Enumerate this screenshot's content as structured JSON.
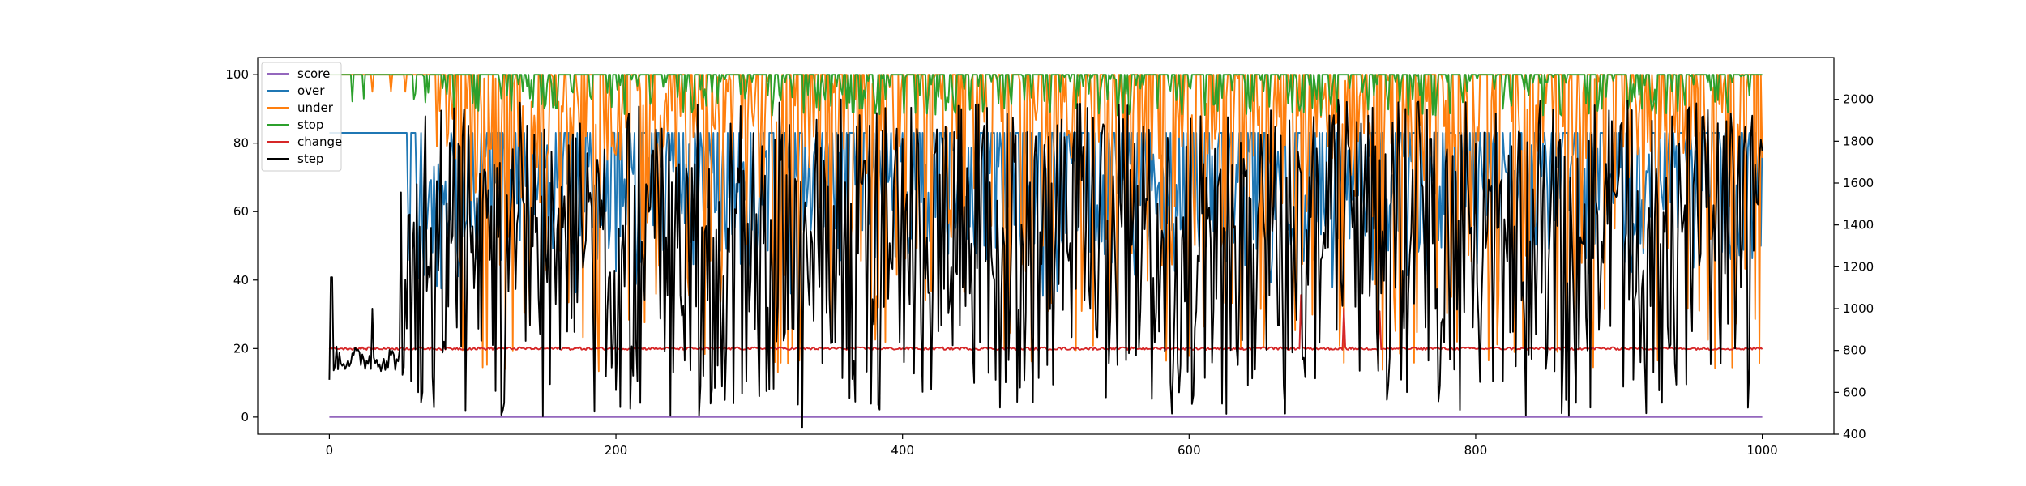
{
  "chart_data": {
    "type": "line",
    "title": "",
    "xlabel": "",
    "ylabel": "",
    "y2label": "",
    "xlim": [
      -50,
      1050
    ],
    "ylim": [
      -5,
      105
    ],
    "y2lim": [
      400,
      2200
    ],
    "xticks": [
      0,
      200,
      400,
      600,
      800,
      1000
    ],
    "yticks": [
      0,
      20,
      40,
      60,
      80,
      100
    ],
    "y2ticks": [
      400,
      600,
      800,
      1000,
      1200,
      1400,
      1600,
      1800,
      2000
    ],
    "grid": false,
    "legend": {
      "position": "top-left",
      "entries": [
        "score",
        "over",
        "under",
        "stop",
        "change",
        "step"
      ]
    },
    "series": [
      {
        "name": "score",
        "axis": "left",
        "color": "#9467bd",
        "pattern": "constant",
        "value": 0
      },
      {
        "name": "over",
        "axis": "left",
        "color": "#1f77b4",
        "pattern": "noisy",
        "base": 83,
        "min": 35,
        "max": 83,
        "approx_mean": 62
      },
      {
        "name": "under",
        "axis": "left",
        "color": "#ff7f0e",
        "pattern": "noisy",
        "base": 100,
        "min": 13,
        "max": 100,
        "approx_mean": 82
      },
      {
        "name": "stop",
        "axis": "left",
        "color": "#2ca02c",
        "pattern": "noisy",
        "base": 100,
        "min": 85,
        "max": 100,
        "approx_mean": 97
      },
      {
        "name": "change",
        "axis": "left",
        "color": "#d62728",
        "pattern": "noisy",
        "base": 20,
        "min": 19,
        "max": 36,
        "approx_mean": 20
      },
      {
        "name": "step",
        "axis": "right",
        "color": "#000000",
        "pattern": "noisy",
        "min": 430,
        "max": 2000,
        "approx_mean": 1350,
        "start_value": 660,
        "early_plateau": 760
      }
    ]
  }
}
